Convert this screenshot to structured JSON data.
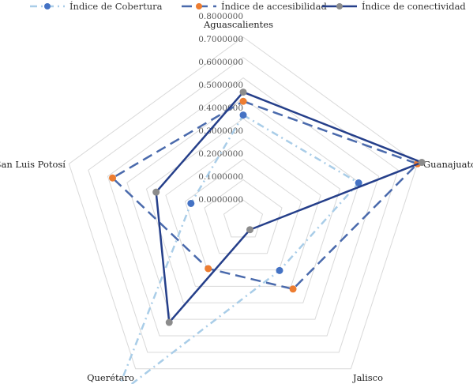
{
  "chart_data": {
    "type": "radar",
    "categories": [
      "Aguascalientes",
      "Guanajuato",
      "Jalisco",
      "Querétaro",
      "San Luis Potosí"
    ],
    "radial_ticks": [
      "0.0000000",
      "0.1000000",
      "0.2000000",
      "0.3000000",
      "0.4000000",
      "0.5000000",
      "0.6000000",
      "0.7000000",
      "0.8000000"
    ],
    "rlim": [
      0,
      0.8
    ],
    "grid": true,
    "legend_position": "top",
    "series": [
      {
        "name": "Índice de Cobertura",
        "values": [
          0.46,
          0.53,
          0.27,
          0.95,
          0.24
        ],
        "color": "#a9cde8",
        "marker_color": "#4472c4",
        "dash": "9 5 2 5",
        "width": 2.5
      },
      {
        "name": "Índice de accesibilidad",
        "values": [
          0.52,
          0.8,
          0.37,
          0.26,
          0.6
        ],
        "color": "#4a6aac",
        "marker_color": "#ed7d31",
        "dash": "13 7",
        "width": 2.5
      },
      {
        "name": "Índice de conectividad",
        "values": [
          0.56,
          0.82,
          0.05,
          0.55,
          0.4
        ],
        "color": "#253f8a",
        "marker_color": "#8c8c8c",
        "dash": "",
        "width": 2.5
      }
    ]
  }
}
